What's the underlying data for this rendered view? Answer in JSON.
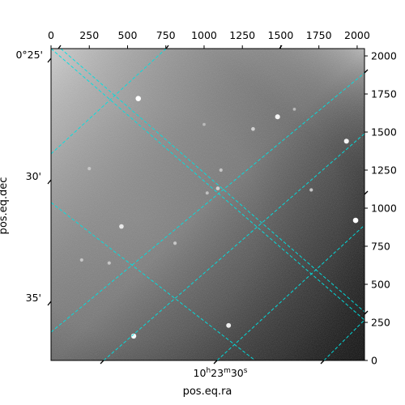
{
  "chart_data": {
    "type": "heatmap",
    "title": "",
    "xlabel": "pos.eq.ra",
    "ylabel": "pos.eq.dec",
    "xlim": [
      0,
      2048
    ],
    "ylim": [
      0,
      2048
    ],
    "pixel_ticks_top": [
      "0",
      "250",
      "500",
      "750",
      "1000",
      "1250",
      "1500",
      "1750",
      "2000"
    ],
    "pixel_ticks_right": [
      "0",
      "250",
      "500",
      "750",
      "1000",
      "1250",
      "1500",
      "1750",
      "2000"
    ],
    "ra_tick_label": "10h23m30s",
    "dec_tick_labels": [
      "0°25'",
      "30'",
      "35'"
    ],
    "grid": true,
    "grid_color": "#00e0e0",
    "colormap": "gray",
    "sources": [
      {
        "x": 570,
        "y": 1720,
        "brightness": 1.0
      },
      {
        "x": 1480,
        "y": 1600,
        "brightness": 0.9
      },
      {
        "x": 1930,
        "y": 1440,
        "brightness": 0.9
      },
      {
        "x": 1990,
        "y": 920,
        "brightness": 1.0
      },
      {
        "x": 1110,
        "y": 1250,
        "brightness": 0.5
      },
      {
        "x": 1020,
        "y": 1100,
        "brightness": 0.45
      },
      {
        "x": 460,
        "y": 880,
        "brightness": 0.8
      },
      {
        "x": 1160,
        "y": 230,
        "brightness": 0.85
      },
      {
        "x": 540,
        "y": 160,
        "brightness": 0.95
      },
      {
        "x": 1320,
        "y": 1520,
        "brightness": 0.6
      },
      {
        "x": 1090,
        "y": 1130,
        "brightness": 0.6
      },
      {
        "x": 250,
        "y": 1260,
        "brightness": 0.5
      },
      {
        "x": 200,
        "y": 660,
        "brightness": 0.5
      },
      {
        "x": 810,
        "y": 770,
        "brightness": 0.5
      },
      {
        "x": 1700,
        "y": 1120,
        "brightness": 0.5
      },
      {
        "x": 1590,
        "y": 1650,
        "brightness": 0.4
      },
      {
        "x": 1000,
        "y": 1550,
        "brightness": 0.4
      },
      {
        "x": 380,
        "y": 640,
        "brightness": 0.5
      }
    ]
  }
}
